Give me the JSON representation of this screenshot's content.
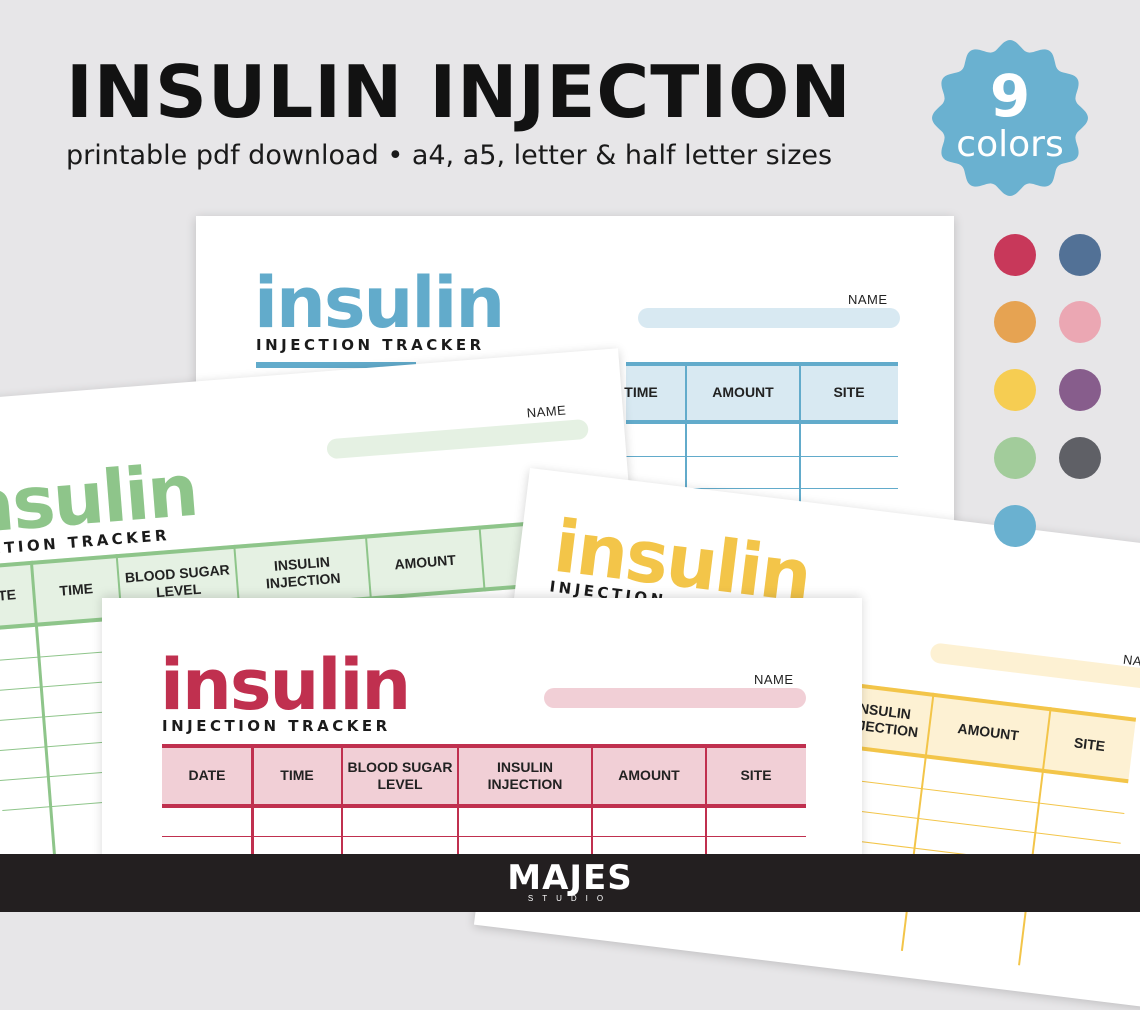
{
  "header": {
    "title": "INSULIN INJECTION",
    "subtitle": "printable pdf download • a4, a5, letter & half letter sizes"
  },
  "badge": {
    "number": "9",
    "word": "colors",
    "color": "#6ab1d0"
  },
  "swatches": [
    {
      "name": "raspberry",
      "color": "#c8385a"
    },
    {
      "name": "slate-blue",
      "color": "#527196"
    },
    {
      "name": "orange",
      "color": "#e6a352"
    },
    {
      "name": "pink",
      "color": "#eba7b3"
    },
    {
      "name": "yellow",
      "color": "#f6cd52"
    },
    {
      "name": "purple",
      "color": "#875d8c"
    },
    {
      "name": "green",
      "color": "#a2cc9b"
    },
    {
      "name": "charcoal",
      "color": "#5f6066"
    },
    {
      "name": "sky-blue",
      "color": "#6ab1d0"
    }
  ],
  "sheets": {
    "blue": {
      "logo": "insulin",
      "logo_sub": "INJECTION TRACKER",
      "name_label": "NAME",
      "columns": [
        "TIME",
        "AMOUNT",
        "SITE"
      ],
      "color": "#62abcb",
      "light": "#d8e9f2"
    },
    "green": {
      "logo": "insulin",
      "logo_sub": "INJECTION TRACKER",
      "name_label": "NAME",
      "columns": [
        "DATE",
        "TIME",
        "BLOOD SUGAR LEVEL",
        "INSULIN INJECTION",
        "AMOUNT"
      ],
      "color": "#8ec58a",
      "light": "#e5f1e3"
    },
    "yellow": {
      "logo": "insulin",
      "logo_sub": "INJECTION",
      "name_label": "NAME",
      "columns": [
        "INSULIN INJECTION",
        "AMOUNT",
        "SITE"
      ],
      "color": "#f3c549",
      "light": "#fdf1d3"
    },
    "red": {
      "logo": "insulin",
      "logo_sub": "INJECTION TRACKER",
      "name_label": "NAME",
      "columns": [
        "DATE",
        "TIME",
        "BLOOD SUGAR LEVEL",
        "INSULIN INJECTION",
        "AMOUNT",
        "SITE"
      ],
      "color": "#c0304f",
      "light": "#f1cfd6"
    }
  },
  "footer": {
    "brand": "MAJES",
    "brand_sub": "STUDIO"
  }
}
